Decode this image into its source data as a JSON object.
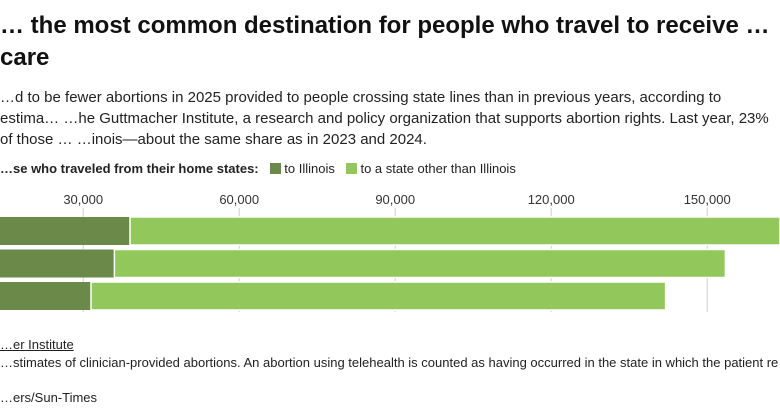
{
  "title": "… the most common destination for people who travel to receive … care",
  "subtitle": "…d to be fewer abortions in 2025 provided to people crossing state lines than in previous years, according to estima… …he Guttmacher Institute, a research and policy organization that supports abortion rights. Last year, 23% of those … …inois—about the same share as in 2023 and 2024.",
  "legend": {
    "title": "…se who traveled from their home states:",
    "items": [
      {
        "label": "to Illinois",
        "color": "#6b8a4a"
      },
      {
        "label": "to a state other than Illinois",
        "color": "#91c75b"
      }
    ]
  },
  "chart_data": {
    "type": "bar",
    "orientation": "horizontal",
    "stacked": true,
    "x_ticks": [
      30000,
      60000,
      90000,
      120000,
      150000
    ],
    "x_tick_labels": [
      "30,000",
      "60,000",
      "90,000",
      "120,000",
      "150,000"
    ],
    "x_domain": [
      14000,
      164000
    ],
    "grid": true,
    "legend_position": "top-left",
    "series": [
      {
        "name": "to Illinois",
        "color": "#6b8a4a",
        "values": [
          39000,
          36000,
          31500
        ]
      },
      {
        "name": "to a state other than Illinois",
        "color": "#91c75b",
        "values": [
          125500,
          117500,
          110500
        ]
      }
    ]
  },
  "footer": {
    "source": "…er Institute",
    "note": "…stimates of clinician-provided abortions. An abortion using telehealth is counted as having occurred in the state in which the patient re…",
    "credit": "…ers/Sun-Times"
  }
}
